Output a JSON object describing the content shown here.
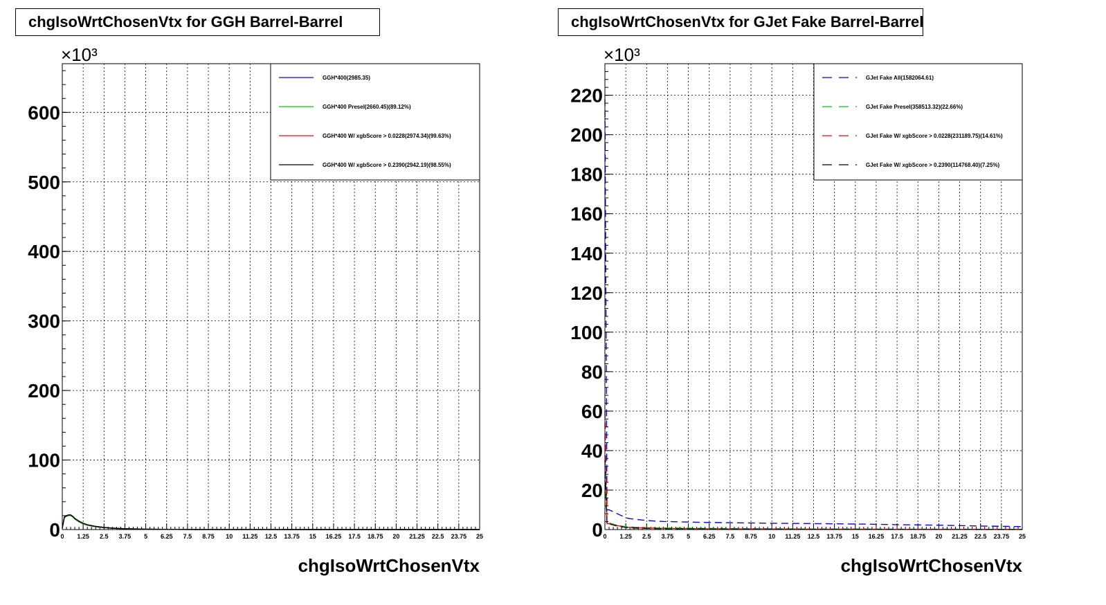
{
  "charts": [
    {
      "id": "left",
      "chart_data": {
        "type": "line",
        "title": "chgIsoWrtChosenVtx for GGH Barrel-Barrel",
        "xlabel": "chgIsoWrtChosenVtx",
        "ylabel": "",
        "y_exponent_label": "×10³",
        "xlim": [
          0,
          25
        ],
        "ylim": [
          0,
          670
        ],
        "y_unit_multiplier": 1000,
        "x_ticks": [
          0,
          1.25,
          2.5,
          3.75,
          5,
          6.25,
          7.5,
          8.75,
          10,
          11.25,
          12.5,
          13.75,
          15,
          16.25,
          17.5,
          18.75,
          20,
          21.25,
          22.5,
          23.75,
          25
        ],
        "x_tick_labels": [
          "0",
          "1.25",
          "2.5",
          "3.75",
          "5",
          "6.25",
          "7.5",
          "8.75",
          "10",
          "11.25",
          "12.5",
          "13.75",
          "15",
          "16.25",
          "17.5",
          "18.75",
          "20",
          "21.25",
          "22.5",
          "23.75",
          "25"
        ],
        "y_ticks": [
          0,
          100,
          200,
          300,
          400,
          500,
          600
        ],
        "y_tick_labels": [
          "0",
          "100",
          "200",
          "300",
          "400",
          "500",
          "600"
        ],
        "grid": true,
        "legend_position": "top-right",
        "x": [
          0,
          0.125,
          0.25,
          0.375,
          0.5,
          0.625,
          0.75,
          1.0,
          1.25,
          1.5,
          2.0,
          2.5,
          3.0,
          3.5,
          4.0,
          5.0,
          6.0,
          8.0,
          10.0,
          15.0,
          20.0,
          25.0
        ],
        "series": [
          {
            "name": "GGH*400(2985.35)",
            "color": "#0000ff",
            "dash": "solid",
            "values": [
              2,
              18,
              20,
              21,
              21,
              19,
              16,
              12,
              9,
              7,
              4.5,
              3,
              2,
              1.4,
              1,
              0.5,
              0.3,
              0.1,
              0.05,
              0,
              0,
              0
            ]
          },
          {
            "name": "GGH*400 Presel(2660.45)(89.12%)",
            "color": "#00cc00",
            "dash": "solid",
            "values": [
              2,
              17,
              19,
              20,
              20,
              18,
              15,
              11,
              8,
              6,
              4,
              2.7,
              1.8,
              1.2,
              0.9,
              0.4,
              0.2,
              0.1,
              0.05,
              0,
              0,
              0
            ]
          },
          {
            "name": "GGH*400 W/ xgbScore > 0.0228(2974.34)(99.63%)",
            "color": "#ff0000",
            "dash": "solid",
            "values": [
              2,
              18,
              20,
              21,
              21,
              19,
              16,
              12,
              9,
              7,
              4.5,
              3,
              2,
              1.4,
              1,
              0.5,
              0.3,
              0.1,
              0.05,
              0,
              0,
              0
            ]
          },
          {
            "name": "GGH*400 W/ xgbScore > 0.2390(2942.19)(98.55%)",
            "color": "#000000",
            "dash": "solid",
            "values": [
              2,
              18,
              20,
              21,
              21,
              19,
              16,
              12,
              9,
              7,
              4.5,
              3,
              2,
              1.4,
              1,
              0.5,
              0.3,
              0.1,
              0.05,
              0,
              0,
              0
            ]
          }
        ]
      }
    },
    {
      "id": "right",
      "chart_data": {
        "type": "line",
        "title": "chgIsoWrtChosenVtx for GJet Fake Barrel-Barrel",
        "xlabel": "chgIsoWrtChosenVtx",
        "ylabel": "",
        "y_exponent_label": "×10³",
        "xlim": [
          0,
          25
        ],
        "ylim": [
          0,
          236
        ],
        "y_unit_multiplier": 1000,
        "x_ticks": [
          0,
          1.25,
          2.5,
          3.75,
          5,
          6.25,
          7.5,
          8.75,
          10,
          11.25,
          12.5,
          13.75,
          15,
          16.25,
          17.5,
          18.75,
          20,
          21.25,
          22.5,
          23.75,
          25
        ],
        "x_tick_labels": [
          "0",
          "1.25",
          "2.5",
          "3.75",
          "5",
          "6.25",
          "7.5",
          "8.75",
          "10",
          "11.25",
          "12.5",
          "13.75",
          "15",
          "16.25",
          "17.5",
          "18.75",
          "20",
          "21.25",
          "22.5",
          "23.75",
          "25"
        ],
        "y_ticks": [
          0,
          20,
          40,
          60,
          80,
          100,
          120,
          140,
          160,
          180,
          200,
          220
        ],
        "y_tick_labels": [
          "0",
          "20",
          "40",
          "60",
          "80",
          "100",
          "120",
          "140",
          "160",
          "180",
          "200",
          "220"
        ],
        "grid": true,
        "legend_position": "top-right",
        "x": [
          0,
          0.125,
          0.25,
          0.375,
          0.5,
          0.625,
          0.75,
          1.0,
          1.25,
          1.5,
          2.0,
          2.5,
          3.0,
          3.5,
          4.0,
          5.0,
          6.0,
          8.0,
          10.0,
          12.5,
          15.0,
          17.5,
          20.0,
          22.5,
          25.0
        ],
        "series": [
          {
            "name": "GJet Fake All(1582064.61)",
            "color": "#0000ff",
            "dash": "10,6",
            "values": [
              218,
              10,
              10,
              9.5,
              9,
              8.5,
              8,
              7,
              6,
              5.5,
              5,
              4.6,
              4.3,
              4.1,
              4,
              3.8,
              3.6,
              3.4,
              3.2,
              3,
              2.8,
              2.5,
              2.2,
              1.8,
              1.5
            ]
          },
          {
            "name": "GJet Fake Presel(358513.32)(22.66%)",
            "color": "#00cc00",
            "dash": "10,6",
            "values": [
              25,
              4,
              3.5,
              3,
              2.8,
              2.5,
              2.2,
              1.8,
              1.5,
              1.3,
              1.1,
              1,
              0.9,
              0.8,
              0.8,
              0.7,
              0.6,
              0.5,
              0.4,
              0.3,
              0.3,
              0.2,
              0.2,
              0.1,
              0.1
            ]
          },
          {
            "name": "GJet Fake W/ xgbScore > 0.0228(231189.75)(14.61%)",
            "color": "#ff0000",
            "dash": "10,6",
            "values": [
              60,
              3,
              3,
              2.8,
              2.5,
              2.3,
              2,
              1.6,
              1.3,
              1.1,
              0.9,
              0.8,
              0.7,
              0.6,
              0.6,
              0.5,
              0.4,
              0.3,
              0.3,
              0.2,
              0.2,
              0.1,
              0.1,
              0.1,
              0.1
            ]
          },
          {
            "name": "GJet Fake W/ xgbScore > 0.2390(114768.40)(7.25%)",
            "color": "#000000",
            "dash": "10,6",
            "values": [
              35,
              3,
              3,
              2.6,
              2.3,
              2,
              1.8,
              1.4,
              1.1,
              0.9,
              0.7,
              0.6,
              0.5,
              0.4,
              0.4,
              0.3,
              0.3,
              0.2,
              0.2,
              0.1,
              0.1,
              0.1,
              0.1,
              0.05,
              0.05
            ]
          }
        ]
      }
    }
  ]
}
